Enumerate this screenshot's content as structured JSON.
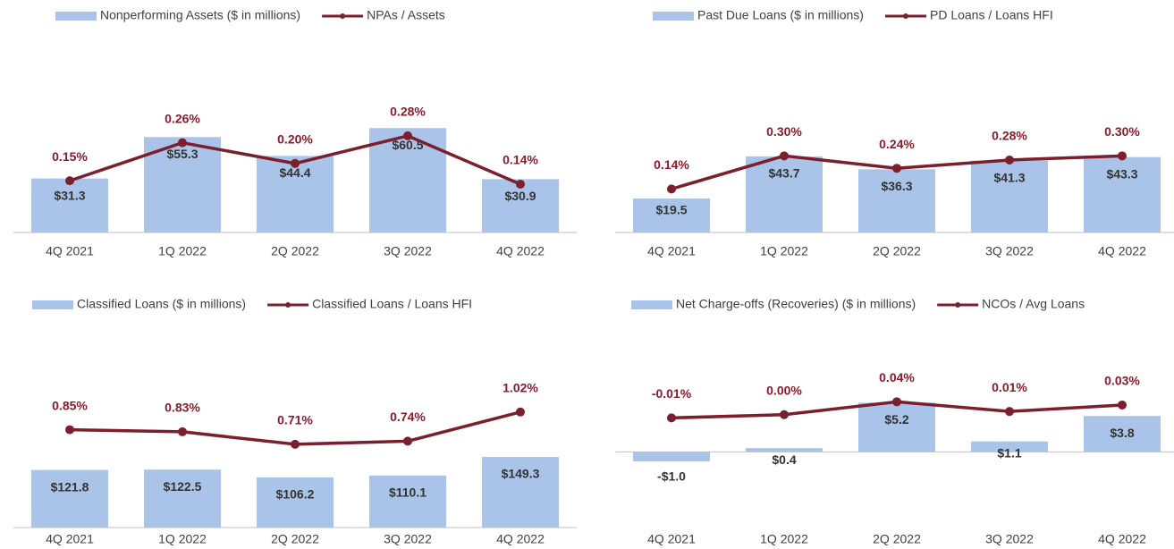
{
  "chart_data": [
    {
      "type": "combo",
      "categories": [
        "4Q 2021",
        "1Q 2022",
        "2Q 2022",
        "3Q 2022",
        "4Q 2022"
      ],
      "ylim": [
        0,
        114
      ],
      "y2lim": [
        0,
        0.57
      ],
      "series": [
        {
          "name": "Nonperforming Assets ($ in millions)",
          "type": "bar",
          "color": "#a9c4e8",
          "values": [
            31.3,
            55.3,
            44.4,
            60.5,
            30.9
          ],
          "value_labels": [
            "$31.3",
            "$55.3",
            "$44.4",
            "$60.5",
            "$30.9"
          ]
        },
        {
          "name": "NPAs / Assets",
          "type": "line",
          "axis": "y2",
          "color": "#7b1f2e",
          "values": [
            0.15,
            0.26,
            0.2,
            0.28,
            0.14
          ],
          "value_labels": [
            "0.15%",
            "0.26%",
            "0.20%",
            "0.28%",
            "0.14%"
          ]
        }
      ]
    },
    {
      "type": "combo",
      "categories": [
        "4Q 2021",
        "1Q 2022",
        "2Q 2022",
        "3Q 2022",
        "4Q 2022"
      ],
      "ylim": [
        0,
        113
      ],
      "y2lim": [
        -0.07,
        0.88
      ],
      "series": [
        {
          "name": "Past Due Loans ($ in millions)",
          "type": "bar",
          "color": "#a9c4e8",
          "values": [
            19.5,
            43.7,
            36.3,
            41.3,
            43.3
          ],
          "value_labels": [
            "$19.5",
            "$43.7",
            "$36.3",
            "$41.3",
            "$43.3"
          ]
        },
        {
          "name": "PD Loans / Loans HFI",
          "type": "line",
          "axis": "y2",
          "color": "#7b1f2e",
          "values": [
            0.14,
            0.3,
            0.24,
            0.28,
            0.3
          ],
          "value_labels": [
            "0.14%",
            "0.30%",
            "0.24%",
            "0.28%",
            "0.30%"
          ]
        }
      ]
    },
    {
      "type": "combo",
      "categories": [
        "4Q 2021",
        "1Q 2022",
        "2Q 2022",
        "3Q 2022",
        "4Q 2022"
      ],
      "ylim": [
        0,
        416
      ],
      "y2lim": [
        -0.09,
        1.8
      ],
      "series": [
        {
          "name": "Classified Loans ($ in millions)",
          "type": "bar",
          "color": "#a9c4e8",
          "values": [
            121.8,
            122.5,
            106.2,
            110.1,
            149.3
          ],
          "value_labels": [
            "$121.8",
            "$122.5",
            "$106.2",
            "$110.1",
            "$149.3"
          ]
        },
        {
          "name": "Classified Loans /  Loans HFI",
          "type": "line",
          "axis": "y2",
          "color": "#7b1f2e",
          "values": [
            0.85,
            0.83,
            0.71,
            0.74,
            1.02
          ],
          "value_labels": [
            "0.85%",
            "0.83%",
            "0.71%",
            "0.74%",
            "1.02%"
          ]
        }
      ]
    },
    {
      "type": "combo",
      "categories": [
        "4Q 2021",
        "1Q 2022",
        "2Q 2022",
        "3Q 2022",
        "4Q 2022"
      ],
      "ylim": [
        -8,
        12.8
      ],
      "y2lim": [
        -0.35,
        0.26
      ],
      "series": [
        {
          "name": "Net Charge-offs (Recoveries) ($ in millions)",
          "type": "bar",
          "color": "#a9c4e8",
          "values": [
            -1.0,
            0.4,
            5.2,
            1.1,
            3.8
          ],
          "value_labels": [
            "-$1.0",
            "$0.4",
            "$5.2",
            "$1.1",
            "$3.8"
          ]
        },
        {
          "name": "NCOs / Avg Loans",
          "type": "line",
          "axis": "y2",
          "color": "#7b1f2e",
          "values": [
            -0.01,
            0.0,
            0.04,
            0.01,
            0.03
          ],
          "value_labels": [
            "-0.01%",
            "0.00%",
            "0.04%",
            "0.01%",
            "0.03%"
          ]
        }
      ]
    }
  ]
}
